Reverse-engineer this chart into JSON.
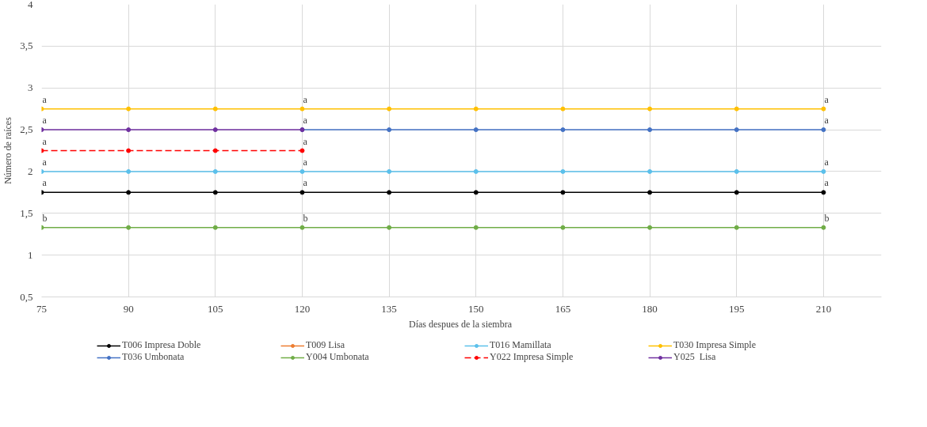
{
  "chart_data": {
    "type": "line",
    "xlabel": "Días  despues de la siembra",
    "ylabel": "Número de raíces",
    "x": [
      75,
      90,
      105,
      120,
      135,
      150,
      165,
      180,
      195,
      210
    ],
    "xlim": [
      75,
      220
    ],
    "xticks": [
      75,
      90,
      105,
      120,
      135,
      150,
      165,
      180,
      195,
      210
    ],
    "ylim": [
      0.5,
      4
    ],
    "yticks": [
      {
        "value": 0.5,
        "label": "0,5"
      },
      1,
      {
        "value": 1.5,
        "label": "1,5"
      },
      2,
      {
        "value": 2.5,
        "label": "2,5"
      },
      3,
      {
        "value": 3.5,
        "label": "3,5"
      },
      4
    ],
    "grid": true,
    "legend": "bottom",
    "marker": "circle",
    "series": [
      {
        "name": "T006 Impresa Doble",
        "color": "#000000",
        "values": [
          1.75,
          1.75,
          1.75,
          1.75,
          1.75,
          1.75,
          1.75,
          1.75,
          1.75,
          1.75
        ]
      },
      {
        "name": "T009 Lisa",
        "color": "#ed7d31",
        "values": [
          null,
          null,
          null,
          null,
          null,
          null,
          null,
          null,
          null,
          null
        ]
      },
      {
        "name": "T016 Mamillata",
        "color": "#5bc0eb",
        "values": [
          2,
          2,
          2,
          2,
          2,
          2,
          2,
          2,
          2,
          2
        ]
      },
      {
        "name": "T030 Impresa Simple",
        "color": "#ffc000",
        "values": [
          2.75,
          2.75,
          2.75,
          2.75,
          2.75,
          2.75,
          2.75,
          2.75,
          2.75,
          2.75
        ]
      },
      {
        "name": "T036 Umbonata",
        "color": "#4472c4",
        "values": [
          null,
          null,
          null,
          2.5,
          2.5,
          2.5,
          2.5,
          2.5,
          2.5,
          2.5
        ]
      },
      {
        "name": "Y004 Umbonata",
        "color": "#70ad47",
        "values": [
          1.33,
          1.33,
          1.33,
          1.33,
          1.33,
          1.33,
          1.33,
          1.33,
          1.33,
          1.33
        ]
      },
      {
        "name": "Y022 Impresa Simple",
        "color": "#ff0000",
        "line_style": "dashed",
        "values": [
          2.25,
          2.25,
          2.25,
          2.25,
          null,
          null,
          null,
          null,
          null,
          null
        ]
      },
      {
        "name": "Y025  Lisa",
        "color": "#7030a0",
        "values": [
          2.5,
          2.5,
          2.5,
          2.5,
          null,
          null,
          null,
          null,
          null,
          null
        ]
      }
    ],
    "annotations": [
      {
        "text": "a",
        "x": 75,
        "y": 2.75
      },
      {
        "text": "a",
        "x": 120,
        "y": 2.75
      },
      {
        "text": "a",
        "x": 210,
        "y": 2.75
      },
      {
        "text": "a",
        "x": 75,
        "y": 2.5
      },
      {
        "text": "a",
        "x": 120,
        "y": 2.5
      },
      {
        "text": "a",
        "x": 210,
        "y": 2.5
      },
      {
        "text": "a",
        "x": 75,
        "y": 2.25
      },
      {
        "text": "a",
        "x": 120,
        "y": 2.25
      },
      {
        "text": "a",
        "x": 75,
        "y": 2
      },
      {
        "text": "a",
        "x": 120,
        "y": 2
      },
      {
        "text": "a",
        "x": 210,
        "y": 2
      },
      {
        "text": "a",
        "x": 75,
        "y": 1.75
      },
      {
        "text": "a",
        "x": 120,
        "y": 1.75
      },
      {
        "text": "a",
        "x": 210,
        "y": 1.75
      },
      {
        "text": "b",
        "x": 75,
        "y": 1.33
      },
      {
        "text": "b",
        "x": 120,
        "y": 1.33
      },
      {
        "text": "b",
        "x": 210,
        "y": 1.33
      }
    ]
  }
}
